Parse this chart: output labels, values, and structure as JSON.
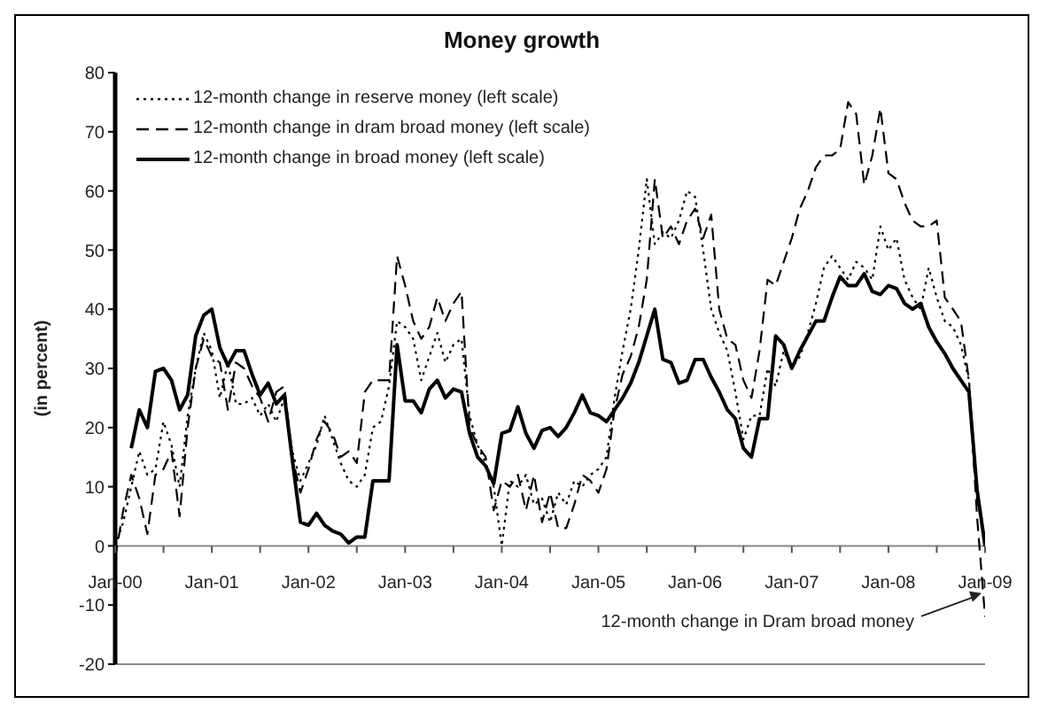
{
  "chart_data": {
    "type": "line",
    "title": "Money growth",
    "ylabel": "(in percent)",
    "x": [
      "2000-01",
      "2000-02",
      "2000-03",
      "2000-04",
      "2000-05",
      "2000-06",
      "2000-07",
      "2000-08",
      "2000-09",
      "2000-10",
      "2000-11",
      "2000-12",
      "2001-01",
      "2001-02",
      "2001-03",
      "2001-04",
      "2001-05",
      "2001-06",
      "2001-07",
      "2001-08",
      "2001-09",
      "2001-10",
      "2001-11",
      "2001-12",
      "2002-01",
      "2002-02",
      "2002-03",
      "2002-04",
      "2002-05",
      "2002-06",
      "2002-07",
      "2002-08",
      "2002-09",
      "2002-10",
      "2002-11",
      "2002-12",
      "2003-01",
      "2003-02",
      "2003-03",
      "2003-04",
      "2003-05",
      "2003-06",
      "2003-07",
      "2003-08",
      "2003-09",
      "2003-10",
      "2003-11",
      "2003-12",
      "2004-01",
      "2004-02",
      "2004-03",
      "2004-04",
      "2004-05",
      "2004-06",
      "2004-07",
      "2004-08",
      "2004-09",
      "2004-10",
      "2004-11",
      "2004-12",
      "2005-01",
      "2005-02",
      "2005-03",
      "2005-04",
      "2005-05",
      "2005-06",
      "2005-07",
      "2005-08",
      "2005-09",
      "2005-10",
      "2005-11",
      "2005-12",
      "2006-01",
      "2006-02",
      "2006-03",
      "2006-04",
      "2006-05",
      "2006-06",
      "2006-07",
      "2006-08",
      "2006-09",
      "2006-10",
      "2006-11",
      "2006-12",
      "2007-01",
      "2007-02",
      "2007-03",
      "2007-04",
      "2007-05",
      "2007-06",
      "2007-07",
      "2007-08",
      "2007-09",
      "2007-10",
      "2007-11",
      "2007-12",
      "2008-01",
      "2008-02",
      "2008-03",
      "2008-04",
      "2008-05",
      "2008-06",
      "2008-07",
      "2008-08",
      "2008-09",
      "2008-10",
      "2008-11",
      "2008-12",
      "2009-01"
    ],
    "series": [
      {
        "name": "12-month change in reserve money (left scale)",
        "color": "#000000",
        "line_style": "dotted",
        "values": [
          0,
          4,
          10,
          16,
          12,
          13,
          21,
          17,
          10,
          22,
          30,
          36,
          33,
          25,
          31,
          24,
          24,
          25,
          22,
          24,
          21,
          25,
          16,
          11,
          14,
          17,
          22,
          18,
          14,
          11,
          10,
          12,
          20,
          21,
          27,
          38,
          37,
          35,
          28,
          32,
          36,
          31,
          34,
          35,
          22,
          17,
          14,
          10,
          0,
          11,
          10,
          12,
          7,
          8,
          4,
          9,
          7,
          11,
          10,
          12,
          13,
          15,
          25,
          33,
          40,
          50,
          62,
          51,
          53,
          52,
          55,
          60,
          59,
          50,
          40,
          36,
          33,
          26,
          18,
          22,
          22,
          30,
          27,
          33,
          30,
          32,
          36,
          41,
          47,
          49,
          47,
          45,
          48,
          47,
          45,
          54,
          50,
          52,
          45,
          42,
          40,
          47,
          42,
          38,
          37,
          34,
          28,
          8,
          1
        ]
      },
      {
        "name": "12-month change in dram broad money (left scale)",
        "color": "#000000",
        "line_style": "dashed",
        "values": [
          -2,
          6,
          12,
          8,
          2,
          12,
          13,
          16,
          5,
          20,
          30,
          35,
          32,
          31,
          23,
          31,
          30,
          27,
          25,
          21,
          26,
          27,
          15,
          9,
          13,
          18,
          21,
          19,
          15,
          16,
          14,
          26,
          28,
          28,
          28,
          49,
          44,
          38,
          35,
          37,
          42,
          38,
          41,
          43,
          20,
          17,
          15,
          6,
          11,
          10,
          12,
          6,
          12,
          4,
          9,
          3,
          3,
          7,
          12,
          11,
          9,
          13,
          23,
          29,
          32,
          37,
          45,
          62,
          52,
          54,
          51,
          55,
          57,
          52,
          56,
          40,
          35,
          34,
          28,
          25,
          33,
          45,
          44,
          48,
          52,
          57,
          60,
          64,
          66,
          66,
          67,
          75,
          73,
          61,
          66,
          74,
          63,
          62,
          58,
          55,
          54,
          54,
          55,
          42,
          40,
          38,
          28,
          5,
          -12
        ]
      },
      {
        "name": "12-month change in broad money (left scale)",
        "color": "#000000",
        "line_style": "solid",
        "values": [
          null,
          null,
          16.5,
          23,
          20,
          29.5,
          30,
          28,
          23,
          25.5,
          35.5,
          39,
          40,
          33.5,
          30.5,
          33,
          33,
          29,
          25.5,
          27.5,
          24,
          25.5,
          14.5,
          4,
          3.5,
          5.5,
          3.5,
          2.5,
          2,
          0.5,
          1.5,
          1.5,
          11,
          11,
          11,
          34,
          24.5,
          24.5,
          22.5,
          26.5,
          28,
          25,
          26.5,
          26,
          19,
          15,
          13.5,
          10.5,
          19,
          19.5,
          23.5,
          19,
          16.5,
          19.5,
          20,
          18.5,
          20,
          22.5,
          25.5,
          22.5,
          22,
          21,
          23,
          25,
          27.5,
          31,
          35.5,
          40,
          31.5,
          31,
          27.5,
          28,
          31.5,
          31.5,
          28.5,
          26,
          23,
          21.5,
          16.5,
          15,
          21.5,
          21.5,
          35.5,
          34,
          30,
          33,
          35.5,
          38,
          38,
          42,
          45.5,
          44,
          44,
          46,
          43,
          42.5,
          44,
          43.5,
          41,
          40,
          41,
          37,
          34.5,
          32.5,
          30,
          28,
          26,
          9.5,
          0
        ]
      }
    ],
    "xlim": [
      "2000-01",
      "2009-01"
    ],
    "xticks": [
      {
        "value": "2000-01",
        "label": "Jan-00"
      },
      {
        "value": "2000-07",
        "label": null
      },
      {
        "value": "2001-01",
        "label": "Jan-01"
      },
      {
        "value": "2001-07",
        "label": null
      },
      {
        "value": "2002-01",
        "label": "Jan-02"
      },
      {
        "value": "2002-07",
        "label": null
      },
      {
        "value": "2003-01",
        "label": "Jan-03"
      },
      {
        "value": "2003-07",
        "label": null
      },
      {
        "value": "2004-01",
        "label": "Jan-04"
      },
      {
        "value": "2004-07",
        "label": null
      },
      {
        "value": "2005-01",
        "label": "Jan-05"
      },
      {
        "value": "2005-07",
        "label": null
      },
      {
        "value": "2006-01",
        "label": "Jan-06"
      },
      {
        "value": "2006-07",
        "label": null
      },
      {
        "value": "2007-01",
        "label": "Jan-07"
      },
      {
        "value": "2007-07",
        "label": null
      },
      {
        "value": "2008-01",
        "label": "Jan-08"
      },
      {
        "value": "2008-07",
        "label": null
      },
      {
        "value": "2009-01",
        "label": "Jan-09"
      }
    ],
    "ylim": [
      -20,
      80
    ],
    "yticks": [
      -20,
      -10,
      0,
      10,
      20,
      30,
      40,
      50,
      60,
      70,
      80
    ],
    "legend": "top left",
    "marker": "none",
    "annotations": [
      {
        "text": "12-month change in Dram broad money",
        "x": "2009-01",
        "y": -8
      }
    ]
  }
}
